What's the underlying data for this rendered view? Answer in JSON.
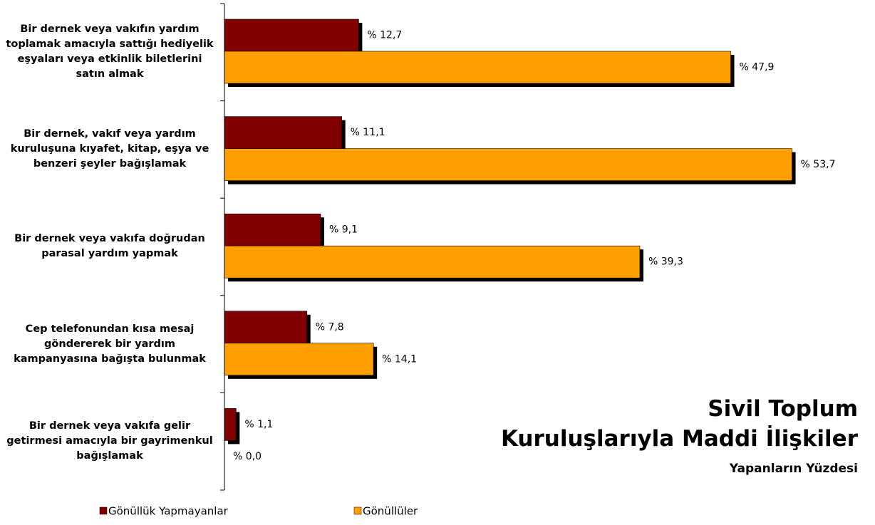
{
  "chart_data": {
    "type": "bar",
    "orientation": "horizontal",
    "title": [
      "Sivil Toplum",
      "Kuruluşlarıyla Maddi İlişkiler"
    ],
    "subtitle": "Yapanların Yüzdesi",
    "categories": [
      "Bir dernek veya vakıfın yardım toplamak amacıyla sattığı hediyelik eşyaları veya etkinlik biletlerini satın almak",
      "Bir dernek, vakıf veya yardım kuruluşuna kıyafet, kitap, eşya ve benzeri şeyler bağışlamak",
      "Bir dernek veya vakıfa doğrudan parasal yardım yapmak",
      "Cep telefonundan kısa mesaj göndererek bir yardım kampanyasına bağışta bulunmak",
      "Bir dernek veya vakıfa gelir getirmesi amacıyla bir gayrimenkul bağışlamak"
    ],
    "series": [
      {
        "name": "Gönüllük Yapmayanlar",
        "color": "#800000",
        "values": [
          12.7,
          11.1,
          9.1,
          7.8,
          1.1
        ],
        "value_labels": [
          "% 12,7",
          "% 11,1",
          "% 9,1",
          "% 7,8",
          "% 1,1"
        ]
      },
      {
        "name": "Gönüllüler",
        "color": "#ff9f00",
        "values": [
          47.9,
          53.7,
          39.3,
          14.1,
          0.0
        ],
        "value_labels": [
          "% 47,9",
          "% 53,7",
          "% 39,3",
          "% 14,1",
          "% 0,0"
        ]
      }
    ],
    "xlim": [
      0,
      60
    ]
  }
}
